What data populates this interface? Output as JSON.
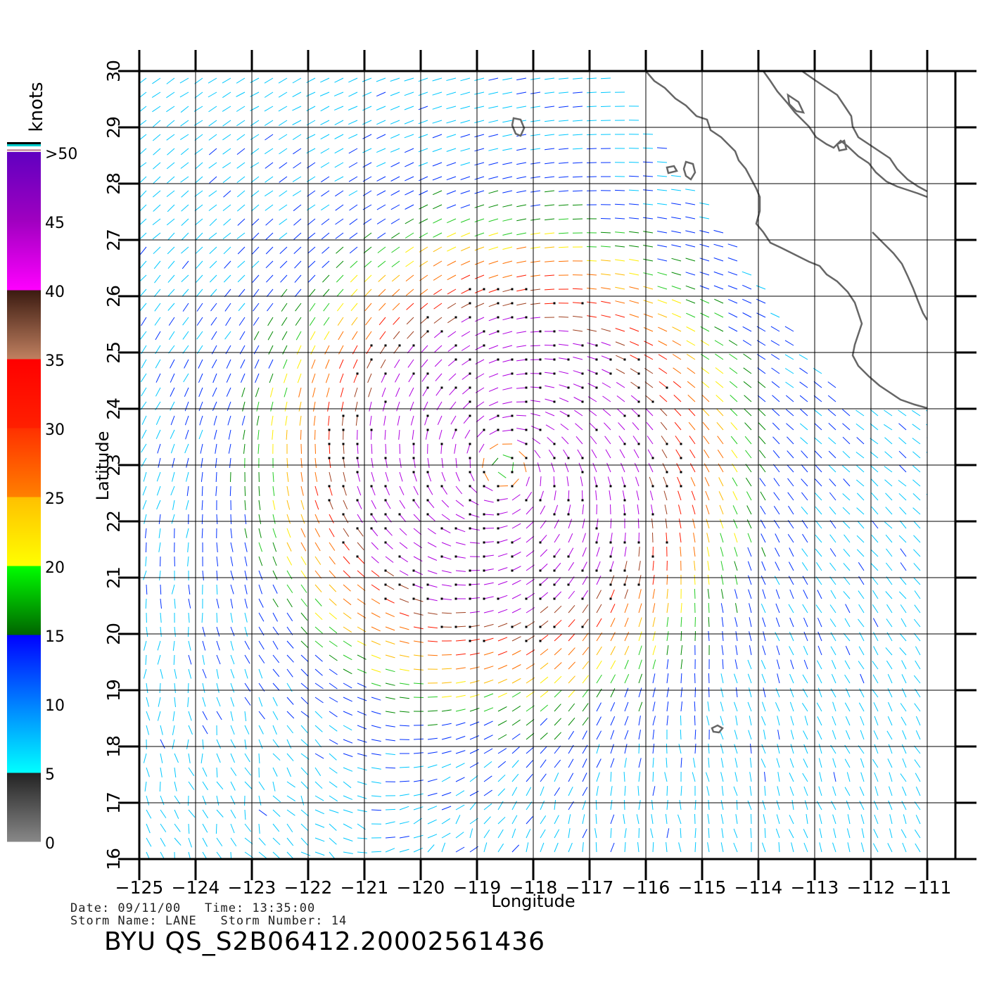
{
  "chart_data": {
    "type": "wind_vector_field",
    "xlabel": "Longitude",
    "ylabel": "Latitude",
    "xlim": [
      -125,
      -110.5
    ],
    "ylim": [
      16,
      30
    ],
    "x_ticks": [
      "-125",
      "-124",
      "-123",
      "-122",
      "-121",
      "-120",
      "-119",
      "-118",
      "-117",
      "-116",
      "-115",
      "-114",
      "-113",
      "-112",
      "-111"
    ],
    "y_ticks": [
      "16",
      "17",
      "18",
      "19",
      "20",
      "21",
      "22",
      "23",
      "24",
      "25",
      "26",
      "27",
      "28",
      "29",
      "30"
    ],
    "grid": true,
    "colorbar": {
      "title": "knots",
      "label_values": [
        "0",
        "5",
        "10",
        "15",
        "20",
        "25",
        "30",
        "35",
        "40",
        "45",
        ">50"
      ],
      "bands": [
        {
          "from": 0,
          "to": 5,
          "colors": [
            "#888888",
            "#222222"
          ]
        },
        {
          "from": 5,
          "to": 10,
          "colors": [
            "#00ffff",
            "#0080ff"
          ]
        },
        {
          "from": 10,
          "to": 15,
          "colors": [
            "#0080ff",
            "#0000ff"
          ]
        },
        {
          "from": 15,
          "to": 20,
          "colors": [
            "#006400",
            "#00ff00"
          ]
        },
        {
          "from": 20,
          "to": 25,
          "colors": [
            "#ffff00",
            "#ffc000"
          ]
        },
        {
          "from": 25,
          "to": 30,
          "colors": [
            "#ff8000",
            "#ff3000"
          ]
        },
        {
          "from": 30,
          "to": 35,
          "colors": [
            "#ff2000",
            "#ff0000"
          ]
        },
        {
          "from": 35,
          "to": 40,
          "colors": [
            "#c08060",
            "#3a1a10"
          ]
        },
        {
          "from": 40,
          "to": 45,
          "colors": [
            "#ff00ff",
            "#a000c0"
          ]
        },
        {
          "from": 45,
          "to": 50,
          "colors": [
            "#a000c0",
            "#6000c0"
          ]
        }
      ]
    },
    "storm_center": {
      "lon": -118.5,
      "lat": 23
    },
    "vector_spacing_deg": 0.25,
    "coastline_color": "#666666"
  },
  "footer": {
    "line1": "Date: 09/11/00   Time: 13:35:00",
    "line2": "Storm Name: LANE   Storm Number: 14",
    "product": "BYU QS_S2B06412.20002561436"
  }
}
